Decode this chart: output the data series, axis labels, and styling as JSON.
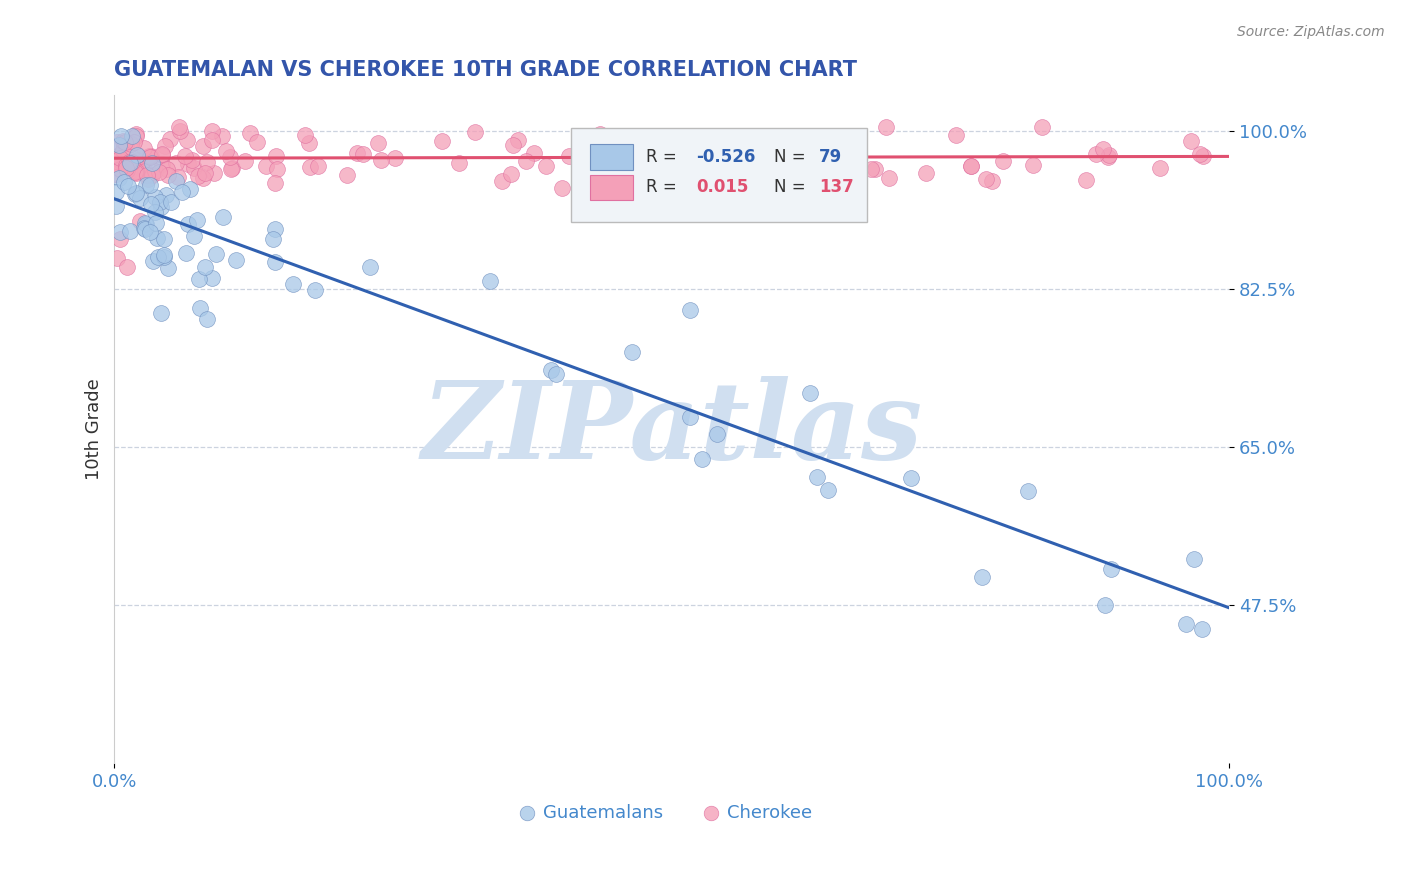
{
  "title": "GUATEMALAN VS CHEROKEE 10TH GRADE CORRELATION CHART",
  "source": "Source: ZipAtlas.com",
  "ylabel": "10th Grade",
  "yticks": [
    0.475,
    0.65,
    0.825,
    1.0
  ],
  "ytick_labels": [
    "47.5%",
    "65.0%",
    "82.5%",
    "100.0%"
  ],
  "xrange": [
    0.0,
    1.0
  ],
  "yrange": [
    0.3,
    1.04
  ],
  "xticks": [
    0.0,
    1.0
  ],
  "xtick_labels": [
    "0.0%",
    "100.0%"
  ],
  "legend_r_blue": "-0.526",
  "legend_n_blue": "79",
  "legend_r_pink": "0.015",
  "legend_n_pink": "137",
  "legend_label_blue": "Guatemalans",
  "legend_label_pink": "Cherokee",
  "blue_color": "#a8c8e8",
  "pink_color": "#f4a0b8",
  "blue_edge_color": "#7090c0",
  "pink_edge_color": "#e070a0",
  "blue_line_color": "#3060b0",
  "pink_line_color": "#e05070",
  "title_color": "#3355aa",
  "axis_color": "#4488cc",
  "ylabel_color": "#333333",
  "watermark": "ZIPatlas",
  "watermark_color": "#d0dff0",
  "background_color": "#ffffff",
  "grid_color": "#c0c8d8",
  "legend_box_color": "#f0f4f8",
  "blue_line_x0": 0.0,
  "blue_line_x1": 1.0,
  "blue_line_y0": 0.925,
  "blue_line_y1": 0.472,
  "pink_line_x0": 0.0,
  "pink_line_x1": 1.0,
  "pink_line_y0": 0.97,
  "pink_line_y1": 0.972
}
